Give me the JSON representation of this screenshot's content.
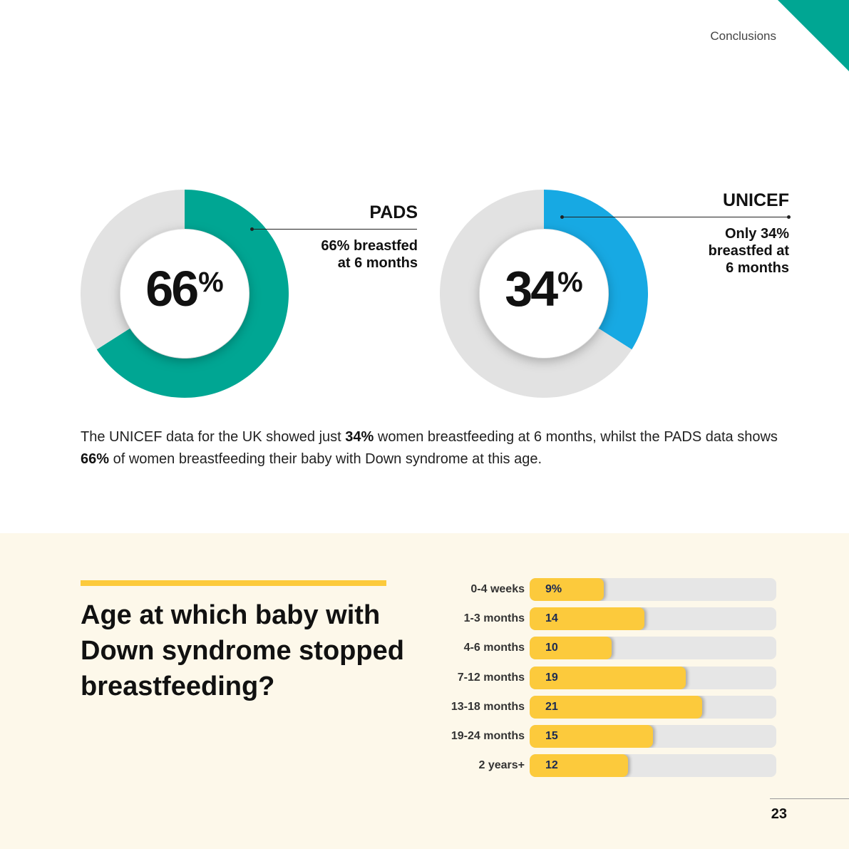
{
  "header": {
    "section": "Conclusions"
  },
  "colors": {
    "teal": "#00a693",
    "blue": "#17a9e3",
    "grey": "#e2e2e2",
    "yellow": "#fcca3c",
    "cream": "#fdf8ea"
  },
  "pads": {
    "percent": "66",
    "symbol": "%",
    "title": "PADS",
    "lines": [
      "66% breastfed",
      "at 6 months"
    ]
  },
  "unicef": {
    "percent": "34",
    "symbol": "%",
    "title": "UNICEF",
    "lines": [
      "Only 34%",
      "breastfed at",
      "6 months"
    ]
  },
  "summary": {
    "part1": "The UNICEF data for the UK showed just ",
    "bold1": "34%",
    "part2": " women breastfeeding at 6 months, whilst the PADS data shows ",
    "bold2": "66%",
    "part3": " of women breastfeeding their baby with Down syndrome at this age."
  },
  "bars": {
    "title": "Age at which baby with Down syndrome stopped breastfeeding?"
  },
  "page_number": "23",
  "chart_data": [
    {
      "type": "pie",
      "variant": "donut",
      "series": [
        {
          "name": "PADS",
          "values": [
            66,
            34
          ]
        }
      ],
      "title": "PADS"
    },
    {
      "type": "pie",
      "variant": "donut",
      "series": [
        {
          "name": "UNICEF",
          "values": [
            34,
            66
          ]
        }
      ],
      "title": "UNICEF"
    },
    {
      "type": "bar",
      "orientation": "horizontal",
      "title": "Age at which baby with Down syndrome stopped breastfeeding?",
      "categories": [
        "0-4 weeks",
        "1-3 months",
        "4-6 months",
        "7-12 months",
        "13-18 months",
        "19-24 months",
        "2 years+"
      ],
      "values": [
        9,
        14,
        10,
        19,
        21,
        15,
        12
      ],
      "value_labels": [
        "9%",
        "14",
        "10",
        "19",
        "21",
        "15",
        "12"
      ],
      "xlim": [
        0,
        30
      ]
    }
  ]
}
